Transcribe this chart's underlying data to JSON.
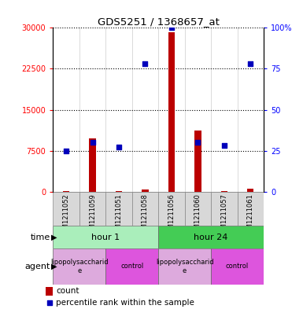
{
  "title": "GDS5251 / 1368657_at",
  "samples": [
    "GSM1211052",
    "GSM1211059",
    "GSM1211051",
    "GSM1211058",
    "GSM1211056",
    "GSM1211060",
    "GSM1211057",
    "GSM1211061"
  ],
  "counts": [
    150,
    9800,
    150,
    350,
    29200,
    11200,
    150,
    500
  ],
  "percentiles": [
    25,
    30,
    27,
    78,
    100,
    30,
    28,
    78
  ],
  "ylim_left": [
    0,
    30000
  ],
  "ylim_right": [
    0,
    100
  ],
  "yticks_left": [
    0,
    7500,
    15000,
    22500,
    30000
  ],
  "yticks_right": [
    0,
    25,
    50,
    75,
    100
  ],
  "ytick_labels_left": [
    "0",
    "7500",
    "15000",
    "22500",
    "30000"
  ],
  "ytick_labels_right": [
    "0",
    "25",
    "50",
    "75",
    "100%"
  ],
  "bar_color": "#bb0000",
  "dot_color": "#0000bb",
  "time_row": [
    {
      "label": "hour 1",
      "start": 0,
      "end": 4,
      "color": "#aaeebb"
    },
    {
      "label": "hour 24",
      "start": 4,
      "end": 8,
      "color": "#44cc55"
    }
  ],
  "agent_row": [
    {
      "label": "lipopolysaccharid\ne",
      "start": 0,
      "end": 2,
      "color": "#ddaadd"
    },
    {
      "label": "control",
      "start": 2,
      "end": 4,
      "color": "#dd55dd"
    },
    {
      "label": "lipopolysaccharid\ne",
      "start": 4,
      "end": 6,
      "color": "#ddaadd"
    },
    {
      "label": "control",
      "start": 6,
      "end": 8,
      "color": "#dd55dd"
    }
  ],
  "legend_count_color": "#bb0000",
  "legend_percentile_color": "#0000bb",
  "time_label": "time",
  "agent_label": "agent"
}
